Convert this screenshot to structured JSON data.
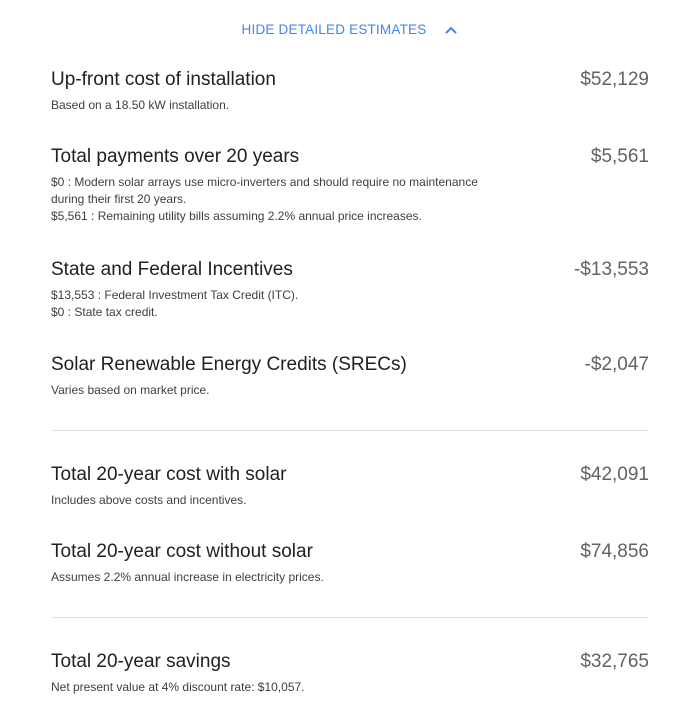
{
  "toggle": {
    "label": "HIDE DETAILED ESTIMATES",
    "icon": "chevron-up-icon"
  },
  "items": [
    {
      "title": "Up-front cost of installation",
      "amount": "$52,129",
      "desc": [
        "Based on a 18.50 kW installation."
      ]
    },
    {
      "title": "Total payments over 20 years",
      "amount": "$5,561",
      "desc": [
        "$0 : Modern solar arrays use micro-inverters and should require no maintenance",
        "during their first 20 years.",
        "$5,561 : Remaining utility bills assuming 2.2% annual price increases."
      ]
    },
    {
      "title": "State and Federal Incentives",
      "amount": "-$13,553",
      "desc": [
        "$13,553 : Federal Investment Tax Credit (ITC).",
        "$0 : State tax credit."
      ]
    },
    {
      "title": "Solar Renewable Energy Credits (SRECs)",
      "amount": "-$2,047",
      "desc": [
        "Varies based on market price."
      ]
    },
    {
      "title": "Total 20-year cost with solar",
      "amount": "$42,091",
      "desc": [
        "Includes above costs and incentives."
      ]
    },
    {
      "title": "Total 20-year cost without solar",
      "amount": "$74,856",
      "desc": [
        "Assumes 2.2% annual increase in electricity prices."
      ]
    },
    {
      "title": "Total 20-year savings",
      "amount": "$32,765",
      "desc": [
        "Net present value at 4% discount rate: $10,057."
      ]
    }
  ],
  "colors": {
    "accent": "#4285f4",
    "amount": "#5f6368",
    "divider": "#e0e0e0"
  }
}
